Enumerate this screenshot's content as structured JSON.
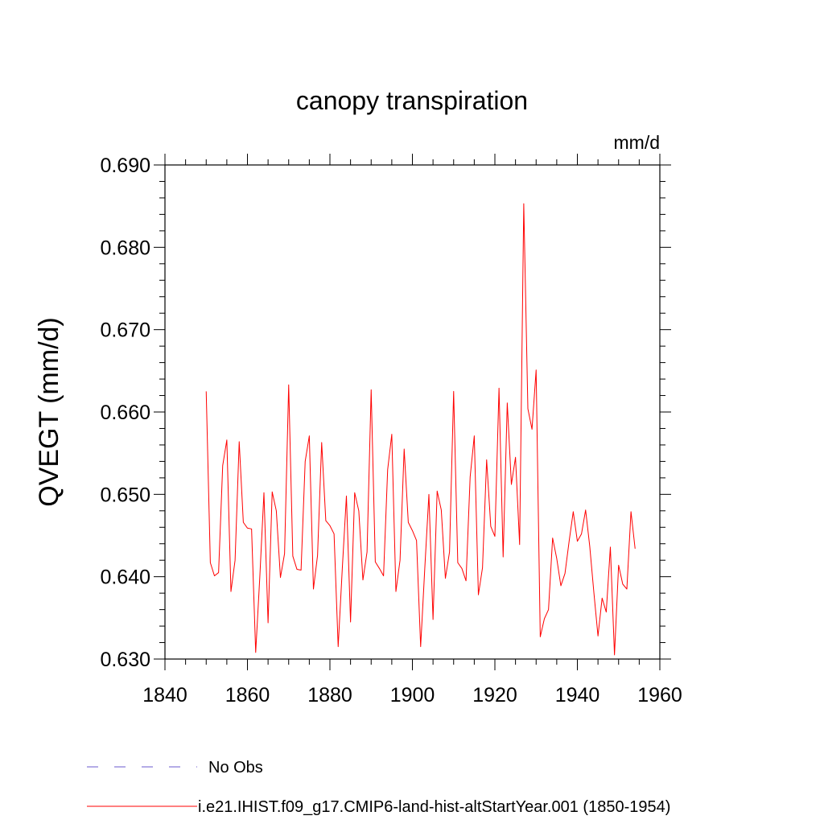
{
  "chart_data": {
    "type": "line",
    "title": "canopy transpiration",
    "units_label": "mm/d",
    "ylabel": "QVEGT  (mm/d)",
    "xlabel": "",
    "xlim": [
      1840,
      1960
    ],
    "ylim": [
      0.63,
      0.69
    ],
    "x_ticks": [
      1840,
      1860,
      1880,
      1900,
      1920,
      1940,
      1960
    ],
    "x_tick_labels": [
      "1840",
      "1860",
      "1880",
      "1900",
      "1920",
      "1940",
      "1960"
    ],
    "y_ticks": [
      0.63,
      0.64,
      0.65,
      0.66,
      0.67,
      0.68,
      0.69
    ],
    "y_tick_labels": [
      "0.630",
      "0.640",
      "0.650",
      "0.660",
      "0.670",
      "0.680",
      "0.690"
    ],
    "grid": false,
    "legend_position": "bottom",
    "legend": [
      {
        "label": "No Obs",
        "color": "#6a5acd",
        "style": "dashed"
      },
      {
        "label": "i.e21.IHIST.f09_g17.CMIP6-land-hist-altStartYear.001 (1850-1954)",
        "color": "#ff0000",
        "style": "solid"
      }
    ],
    "series": [
      {
        "name": "i.e21.IHIST.f09_g17.CMIP6-land-hist-altStartYear.001 (1850-1954)",
        "color": "#ff0000",
        "x": [
          1850,
          1851,
          1852,
          1853,
          1854,
          1855,
          1856,
          1857,
          1858,
          1859,
          1860,
          1861,
          1862,
          1863,
          1864,
          1865,
          1866,
          1867,
          1868,
          1869,
          1870,
          1871,
          1872,
          1873,
          1874,
          1875,
          1876,
          1877,
          1878,
          1879,
          1880,
          1881,
          1882,
          1883,
          1884,
          1885,
          1886,
          1887,
          1888,
          1889,
          1890,
          1891,
          1892,
          1893,
          1894,
          1895,
          1896,
          1897,
          1898,
          1899,
          1900,
          1901,
          1902,
          1903,
          1904,
          1905,
          1906,
          1907,
          1908,
          1909,
          1910,
          1911,
          1912,
          1913,
          1914,
          1915,
          1916,
          1917,
          1918,
          1919,
          1920,
          1921,
          1922,
          1923,
          1924,
          1925,
          1926,
          1927,
          1928,
          1929,
          1930,
          1931,
          1932,
          1933,
          1934,
          1935,
          1936,
          1937,
          1938,
          1939,
          1940,
          1941,
          1942,
          1943,
          1944,
          1945,
          1946,
          1947,
          1948,
          1949,
          1950,
          1951,
          1952,
          1953,
          1954
        ],
        "y": [
          0.6625,
          0.6417,
          0.6401,
          0.6405,
          0.6535,
          0.6566,
          0.6382,
          0.642,
          0.6564,
          0.6466,
          0.6459,
          0.6458,
          0.6308,
          0.64,
          0.6502,
          0.6344,
          0.6503,
          0.648,
          0.6399,
          0.6428,
          0.6633,
          0.6425,
          0.6409,
          0.6408,
          0.654,
          0.6571,
          0.6385,
          0.6426,
          0.6563,
          0.6468,
          0.6462,
          0.6452,
          0.6315,
          0.641,
          0.6498,
          0.6345,
          0.6502,
          0.648,
          0.6396,
          0.643,
          0.6627,
          0.6418,
          0.641,
          0.6401,
          0.653,
          0.6573,
          0.6382,
          0.642,
          0.6555,
          0.6466,
          0.6456,
          0.6444,
          0.6315,
          0.641,
          0.65,
          0.6348,
          0.6504,
          0.6481,
          0.6398,
          0.643,
          0.6625,
          0.6417,
          0.641,
          0.6395,
          0.6521,
          0.6571,
          0.6378,
          0.6411,
          0.6542,
          0.6461,
          0.6449,
          0.6629,
          0.6424,
          0.6611,
          0.6512,
          0.6545,
          0.6439,
          0.6853,
          0.6604,
          0.6579,
          0.6651,
          0.6327,
          0.6349,
          0.636,
          0.6447,
          0.6422,
          0.6389,
          0.6404,
          0.6443,
          0.6479,
          0.6443,
          0.6452,
          0.6481,
          0.6437,
          0.6381,
          0.6328,
          0.6374,
          0.6357,
          0.6436,
          0.6305,
          0.6414,
          0.6391,
          0.6385,
          0.6479,
          0.6434
        ]
      }
    ]
  }
}
